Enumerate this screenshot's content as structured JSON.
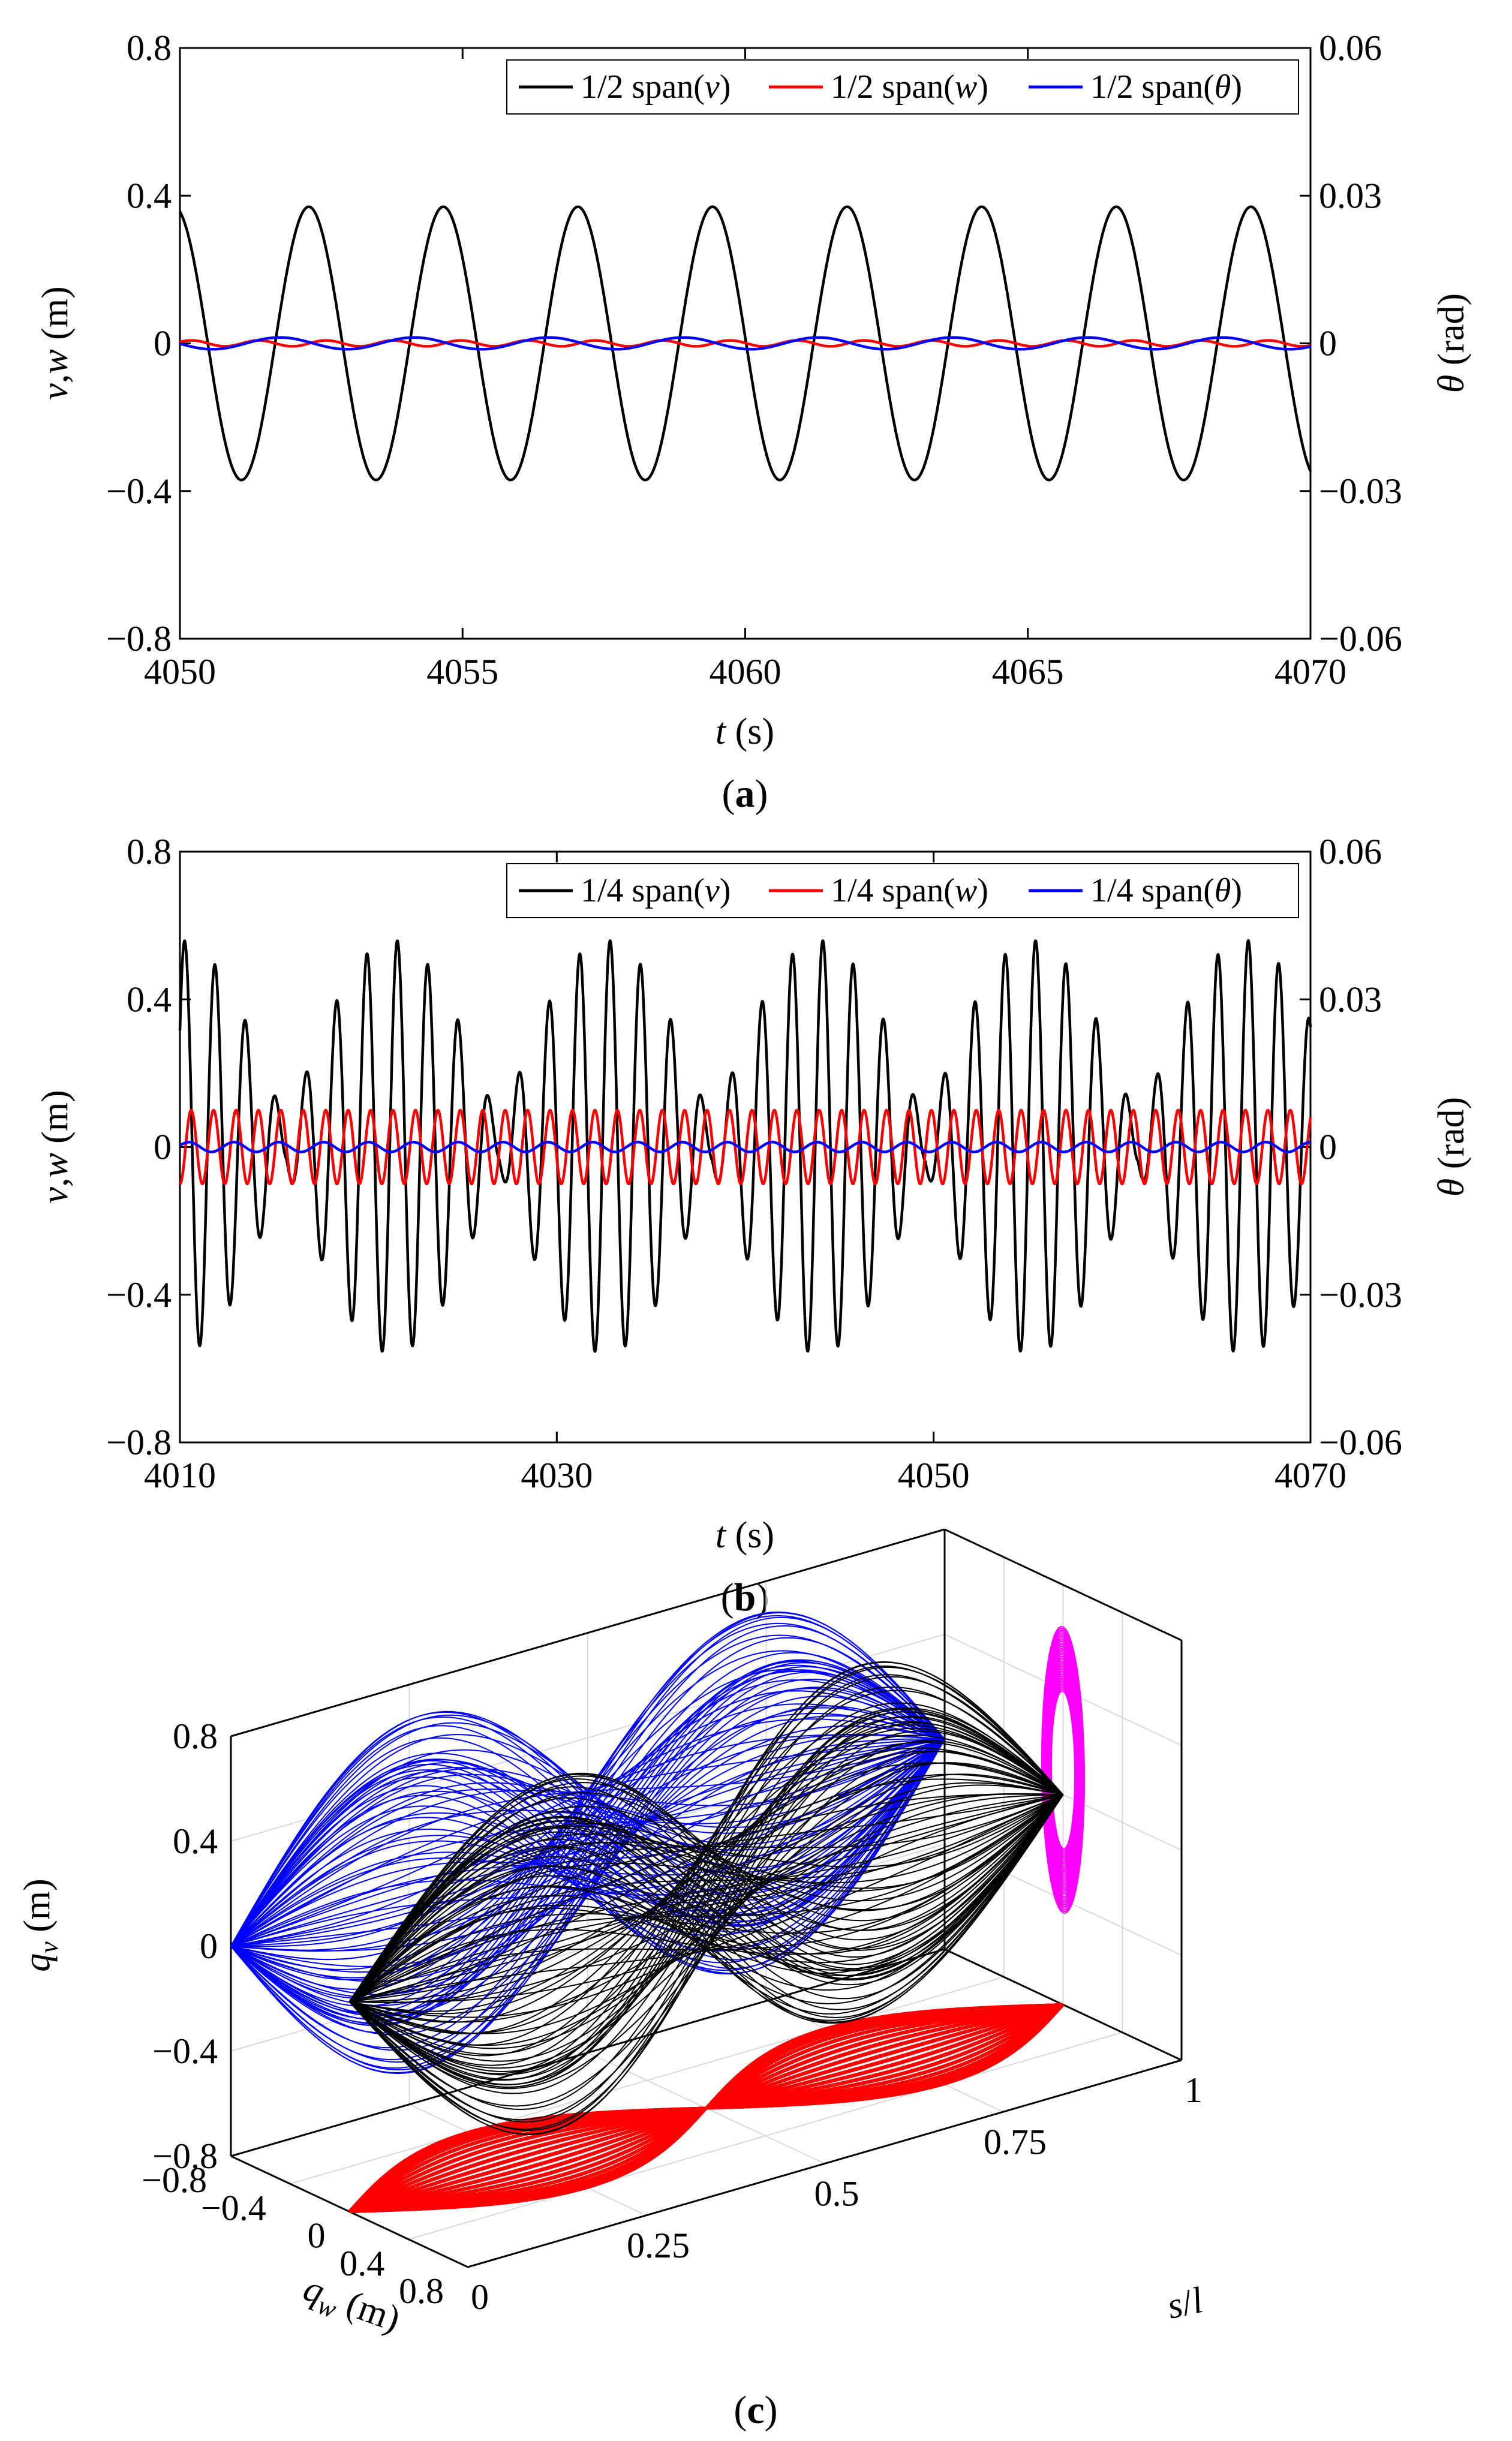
{
  "colors": {
    "v": "#000000",
    "w": "#ff0000",
    "theta": "#0000ff",
    "proj_v": "#0000ff",
    "proj_w": "#ff0000",
    "proj_theta": "#ff00ff",
    "curves3d": "#000000"
  },
  "chart_data": [
    {
      "panel_label_parts": [
        "(",
        "a",
        ")"
      ],
      "type": "line",
      "xlabel_parts": [
        "t",
        " (s)"
      ],
      "ylabel_left_parts": [
        "v",
        ",",
        "w",
        " (m)"
      ],
      "ylabel_right_parts": [
        "θ",
        " (rad)"
      ],
      "xlim": [
        4050,
        4070
      ],
      "ylim_left": [
        -0.8,
        0.8
      ],
      "ylim_right": [
        -0.06,
        0.06
      ],
      "xticks": [
        4050,
        4055,
        4060,
        4065,
        4070
      ],
      "xtick_labels": [
        "4050",
        "4055",
        "4060",
        "4065",
        "4070"
      ],
      "yticks_left": [
        -0.8,
        -0.4,
        0,
        0.4,
        0.8
      ],
      "ytick_labels_left": [
        "−0.8",
        "−0.4",
        "0",
        "0.4",
        "0.8"
      ],
      "yticks_right": [
        -0.06,
        -0.03,
        0,
        0.03,
        0.06
      ],
      "ytick_labels_right": [
        "−0.06",
        "−0.03",
        "0",
        "0.03",
        "0.06"
      ],
      "legend_position": "top-right",
      "series": [
        {
          "name_parts": [
            "1/2 span(",
            "v",
            ")"
          ],
          "color_key": "v",
          "axis": "left",
          "model": "sine",
          "amplitude": 0.37,
          "frequency_hz": 0.42,
          "phase_rad": 1.84,
          "offset": 0
        },
        {
          "name_parts": [
            "1/2 span(",
            "w",
            ")"
          ],
          "color_key": "w",
          "axis": "left",
          "model": "sine",
          "amplitude": 0.008,
          "frequency_hz": 0.84,
          "phase_rad": 0.5,
          "offset": 0
        },
        {
          "name_parts": [
            "1/2 span(",
            "θ",
            ")"
          ],
          "color_key": "theta",
          "axis": "right",
          "model": "sine",
          "amplitude": 0.0012,
          "frequency_hz": 0.42,
          "phase_rad": 3.2,
          "offset": 0
        }
      ]
    },
    {
      "panel_label_parts": [
        "(",
        "b",
        ")"
      ],
      "type": "line",
      "xlabel_parts": [
        "t",
        " (s)"
      ],
      "ylabel_left_parts": [
        "v",
        ",",
        "w",
        " (m)"
      ],
      "ylabel_right_parts": [
        "θ",
        " (rad)"
      ],
      "xlim": [
        4010,
        4070
      ],
      "ylim_left": [
        -0.8,
        0.8
      ],
      "ylim_right": [
        -0.06,
        0.06
      ],
      "xticks": [
        4010,
        4030,
        4050,
        4070
      ],
      "xtick_labels": [
        "4010",
        "4030",
        "4050",
        "4070"
      ],
      "yticks_left": [
        -0.8,
        -0.4,
        0,
        0.4,
        0.8
      ],
      "ytick_labels_left": [
        "−0.8",
        "−0.4",
        "0",
        "0.4",
        "0.8"
      ],
      "yticks_right": [
        -0.06,
        -0.03,
        0,
        0.03,
        0.06
      ],
      "ytick_labels_right": [
        "−0.06",
        "−0.03",
        "0",
        "0.03",
        "0.06"
      ],
      "legend_position": "top-right",
      "series": [
        {
          "name_parts": [
            "1/4 span(",
            "v",
            ")"
          ],
          "color_key": "v",
          "axis": "left",
          "model": "beat",
          "amplitude": 0.56,
          "frequency_hz": 0.62,
          "beat_period_s": 11.3,
          "floor": 0.1,
          "phase_rad": 0.6
        },
        {
          "name_parts": [
            "1/4 span(",
            "w",
            ")"
          ],
          "color_key": "w",
          "axis": "left",
          "model": "sine",
          "amplitude": 0.1,
          "frequency_hz": 0.84,
          "phase_rad": 4.7,
          "offset": 0
        },
        {
          "name_parts": [
            "1/4 span(",
            "θ",
            ")"
          ],
          "color_key": "theta",
          "axis": "right",
          "model": "sine",
          "amplitude": 0.001,
          "frequency_hz": 0.42,
          "phase_rad": 0.3,
          "offset": 0
        }
      ]
    },
    {
      "panel_label_parts": [
        "(",
        "c",
        ")"
      ],
      "type": "line3d",
      "xlabel_parts": [
        "q",
        "w",
        " (m)"
      ],
      "ylabel_parts": [
        "s",
        "/",
        "l"
      ],
      "zlabel_parts": [
        "q",
        "v",
        " (m)"
      ],
      "qw_lim": [
        -0.8,
        0.8
      ],
      "s_lim": [
        0,
        1
      ],
      "qv_lim": [
        -0.8,
        0.8
      ],
      "qw_ticks": [
        -0.8,
        -0.4,
        0,
        0.4,
        0.8
      ],
      "qw_tick_labels": [
        "−0.8",
        "−0.4",
        "0",
        "0.4",
        "0.8"
      ],
      "s_ticks": [
        0,
        0.25,
        0.5,
        0.75,
        1
      ],
      "s_tick_labels": [
        "0",
        "0.25",
        "0.5",
        "0.75",
        "1"
      ],
      "qv_ticks": [
        -0.8,
        -0.4,
        0,
        0.4,
        0.8
      ],
      "qv_tick_labels": [
        "−0.8",
        "−0.4",
        "0",
        "0.4",
        "0.8"
      ],
      "num_snapshots": 90,
      "qv_mode1_amplitude": 0.2,
      "qv_mode2_amplitude": 0.56,
      "qw_amplitude": 0.1,
      "theta_projection_qv_range": [
        -0.45,
        0.64
      ]
    }
  ]
}
